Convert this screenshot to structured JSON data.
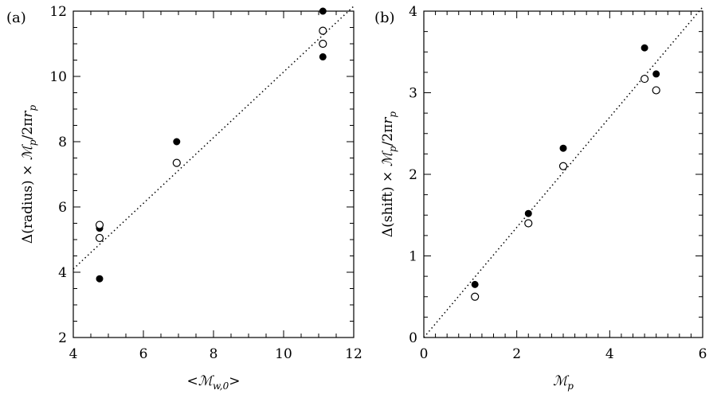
{
  "chart_data": [
    {
      "panel_label": "(a)",
      "type": "scatter",
      "xlabel": "<ℳ_w,0>",
      "ylabel": "Δ(radius) × ℳ_p/2πr_p",
      "xlim": [
        4,
        12
      ],
      "ylim": [
        2,
        12
      ],
      "xticks": [
        4,
        6,
        8,
        10,
        12
      ],
      "yticks": [
        2,
        4,
        6,
        8,
        10,
        12
      ],
      "xtick_labels": [
        "4",
        "6",
        "8",
        "10",
        "12"
      ],
      "ytick_labels": [
        "2",
        "4",
        "6",
        "8",
        "10",
        "12"
      ],
      "series": [
        {
          "marker": "filled-circle",
          "points": [
            [
              4.75,
              3.8
            ],
            [
              4.75,
              5.35
            ],
            [
              6.95,
              8.0
            ],
            [
              11.12,
              12.0
            ],
            [
              11.12,
              10.6
            ]
          ]
        },
        {
          "marker": "open-circle",
          "points": [
            [
              4.75,
              5.45
            ],
            [
              4.75,
              5.05
            ],
            [
              6.95,
              7.35
            ],
            [
              11.12,
              11.4
            ],
            [
              11.12,
              11.0
            ]
          ]
        }
      ],
      "reference_line": {
        "style": "dotted",
        "from": [
          4,
          4.1
        ],
        "to": [
          12,
          12.15
        ]
      }
    },
    {
      "panel_label": "(b)",
      "type": "scatter",
      "xlabel": "ℳ_p",
      "ylabel": "Δ(shift) × ℳ_p/2πr_p",
      "xlim": [
        0,
        6
      ],
      "ylim": [
        0,
        4
      ],
      "xticks": [
        0,
        2,
        4,
        6
      ],
      "yticks": [
        0,
        1,
        2,
        3,
        4
      ],
      "xtick_labels": [
        "0",
        "2",
        "4",
        "6"
      ],
      "ytick_labels": [
        "0",
        "1",
        "2",
        "3",
        "4"
      ],
      "series": [
        {
          "marker": "filled-circle",
          "points": [
            [
              1.1,
              0.65
            ],
            [
              2.25,
              1.52
            ],
            [
              3.0,
              2.32
            ],
            [
              4.75,
              3.55
            ],
            [
              5.0,
              3.23
            ]
          ]
        },
        {
          "marker": "open-circle",
          "points": [
            [
              1.1,
              0.5
            ],
            [
              2.25,
              1.4
            ],
            [
              3.0,
              2.1
            ],
            [
              4.75,
              3.17
            ],
            [
              5.0,
              3.03
            ]
          ]
        }
      ],
      "reference_line": {
        "style": "dotted",
        "from": [
          0,
          0
        ],
        "to": [
          6,
          4.05
        ]
      }
    }
  ]
}
